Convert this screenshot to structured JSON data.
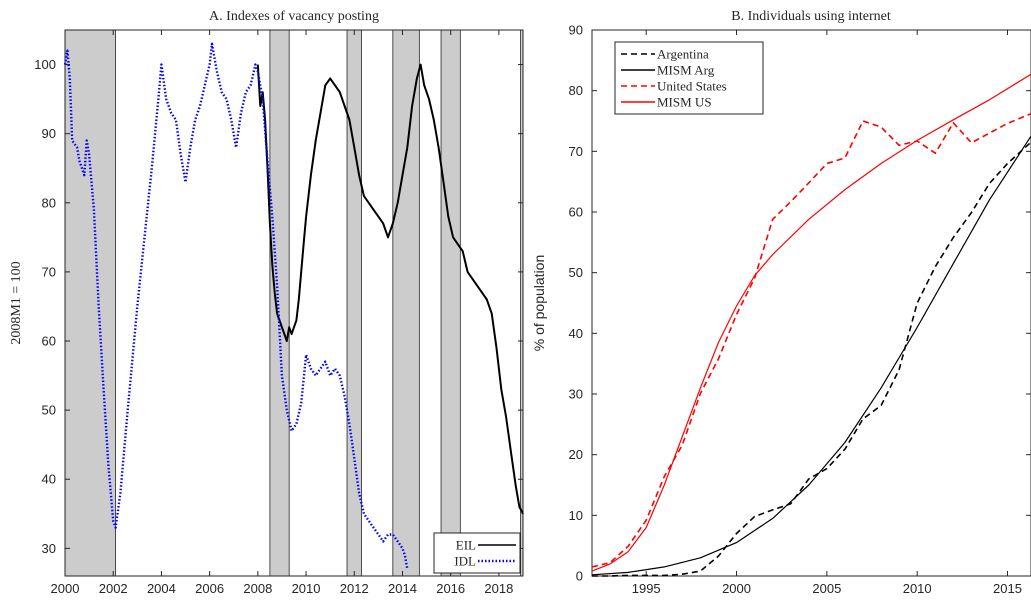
{
  "chart_data": [
    {
      "type": "line",
      "title": "A. Indexes of vacancy posting",
      "xlabel": "",
      "ylabel": "2008M1 = 100",
      "xlim": [
        2000,
        2019
      ],
      "ylim": [
        26,
        105
      ],
      "xticks": [
        2000,
        2002,
        2004,
        2006,
        2008,
        2010,
        2012,
        2014,
        2016,
        2018
      ],
      "yticks": [
        30,
        40,
        50,
        60,
        70,
        80,
        90,
        100
      ],
      "grid": false,
      "legend_position": "bottom-right",
      "recession_bands": [
        [
          2000.0,
          2002.1
        ],
        [
          2008.5,
          2009.3
        ],
        [
          2011.7,
          2012.3
        ],
        [
          2013.6,
          2014.7
        ],
        [
          2015.6,
          2016.4
        ],
        [
          2018.9,
          2019.0
        ]
      ],
      "series": [
        {
          "name": "EIL",
          "color": "#000000",
          "style": "solid",
          "points": [
            [
              2008.0,
              100
            ],
            [
              2008.1,
              94
            ],
            [
              2008.2,
              96
            ],
            [
              2008.3,
              92
            ],
            [
              2008.4,
              85
            ],
            [
              2008.5,
              77
            ],
            [
              2008.6,
              71
            ],
            [
              2008.7,
              67
            ],
            [
              2008.8,
              64
            ],
            [
              2008.9,
              63
            ],
            [
              2009.0,
              62
            ],
            [
              2009.1,
              61
            ],
            [
              2009.2,
              60
            ],
            [
              2009.3,
              62
            ],
            [
              2009.4,
              61
            ],
            [
              2009.5,
              62
            ],
            [
              2009.6,
              63
            ],
            [
              2009.7,
              66
            ],
            [
              2009.8,
              70
            ],
            [
              2009.9,
              74
            ],
            [
              2010.0,
              78
            ],
            [
              2010.2,
              84
            ],
            [
              2010.4,
              89
            ],
            [
              2010.6,
              93
            ],
            [
              2010.8,
              97
            ],
            [
              2011.0,
              98
            ],
            [
              2011.2,
              97
            ],
            [
              2011.4,
              96
            ],
            [
              2011.6,
              94
            ],
            [
              2011.8,
              92
            ],
            [
              2012.0,
              88
            ],
            [
              2012.2,
              84
            ],
            [
              2012.4,
              81
            ],
            [
              2012.6,
              80
            ],
            [
              2012.8,
              79
            ],
            [
              2013.0,
              78
            ],
            [
              2013.2,
              77
            ],
            [
              2013.4,
              75
            ],
            [
              2013.6,
              77
            ],
            [
              2013.8,
              80
            ],
            [
              2014.0,
              84
            ],
            [
              2014.2,
              88
            ],
            [
              2014.4,
              94
            ],
            [
              2014.6,
              98
            ],
            [
              2014.75,
              100
            ],
            [
              2014.9,
              97
            ],
            [
              2015.1,
              95
            ],
            [
              2015.3,
              92
            ],
            [
              2015.5,
              88
            ],
            [
              2015.7,
              83
            ],
            [
              2015.9,
              78
            ],
            [
              2016.1,
              75
            ],
            [
              2016.3,
              74
            ],
            [
              2016.5,
              73
            ],
            [
              2016.7,
              70
            ],
            [
              2016.9,
              69
            ],
            [
              2017.1,
              68
            ],
            [
              2017.3,
              67
            ],
            [
              2017.5,
              66
            ],
            [
              2017.7,
              64
            ],
            [
              2017.9,
              59
            ],
            [
              2018.1,
              53
            ],
            [
              2018.3,
              49
            ],
            [
              2018.5,
              44
            ],
            [
              2018.7,
              39
            ],
            [
              2018.85,
              36
            ],
            [
              2019.0,
              35
            ]
          ]
        },
        {
          "name": "IDL",
          "color": "#0000ff",
          "style": "dotted",
          "points": [
            [
              2000.0,
              100
            ],
            [
              2000.1,
              102
            ],
            [
              2000.2,
              98
            ],
            [
              2000.3,
              89
            ],
            [
              2000.5,
              88
            ],
            [
              2000.6,
              86
            ],
            [
              2000.8,
              84
            ],
            [
              2000.9,
              89
            ],
            [
              2001.0,
              87
            ],
            [
              2001.2,
              79
            ],
            [
              2001.4,
              65
            ],
            [
              2001.6,
              53
            ],
            [
              2001.8,
              42
            ],
            [
              2002.0,
              34
            ],
            [
              2002.1,
              33
            ],
            [
              2002.3,
              38
            ],
            [
              2002.6,
              50
            ],
            [
              2003.0,
              65
            ],
            [
              2003.3,
              75
            ],
            [
              2003.6,
              85
            ],
            [
              2003.9,
              96
            ],
            [
              2004.0,
              100
            ],
            [
              2004.2,
              95
            ],
            [
              2004.4,
              93
            ],
            [
              2004.6,
              92
            ],
            [
              2004.8,
              87
            ],
            [
              2005.0,
              83
            ],
            [
              2005.2,
              88
            ],
            [
              2005.4,
              92
            ],
            [
              2005.6,
              94
            ],
            [
              2005.8,
              97
            ],
            [
              2006.0,
              100
            ],
            [
              2006.1,
              103
            ],
            [
              2006.3,
              99
            ],
            [
              2006.5,
              96
            ],
            [
              2006.7,
              95
            ],
            [
              2006.9,
              92
            ],
            [
              2007.1,
              88
            ],
            [
              2007.3,
              93
            ],
            [
              2007.5,
              96
            ],
            [
              2007.7,
              97
            ],
            [
              2007.9,
              100
            ],
            [
              2008.0,
              99
            ],
            [
              2008.2,
              95
            ],
            [
              2008.4,
              86
            ],
            [
              2008.6,
              78
            ],
            [
              2008.8,
              68
            ],
            [
              2009.0,
              55
            ],
            [
              2009.2,
              50
            ],
            [
              2009.4,
              47
            ],
            [
              2009.6,
              48
            ],
            [
              2009.8,
              51
            ],
            [
              2010.0,
              58
            ],
            [
              2010.2,
              56
            ],
            [
              2010.4,
              55
            ],
            [
              2010.6,
              56
            ],
            [
              2010.8,
              57
            ],
            [
              2011.0,
              55
            ],
            [
              2011.2,
              56
            ],
            [
              2011.4,
              55
            ],
            [
              2011.6,
              52
            ],
            [
              2011.8,
              48
            ],
            [
              2012.0,
              43
            ],
            [
              2012.2,
              38
            ],
            [
              2012.4,
              35
            ],
            [
              2012.6,
              34
            ],
            [
              2012.8,
              33
            ],
            [
              2013.0,
              32
            ],
            [
              2013.2,
              31
            ],
            [
              2013.4,
              32
            ],
            [
              2013.6,
              32
            ],
            [
              2013.8,
              31
            ],
            [
              2014.0,
              30
            ],
            [
              2014.1,
              29
            ],
            [
              2014.2,
              27
            ]
          ]
        }
      ]
    },
    {
      "type": "line",
      "title": "B. Individuals using internet",
      "xlabel": "",
      "ylabel": "% of population",
      "xlim": [
        1992,
        2016.3
      ],
      "ylim": [
        0,
        90
      ],
      "xticks": [
        1995,
        2000,
        2005,
        2010,
        2015
      ],
      "yticks": [
        0,
        10,
        20,
        30,
        40,
        50,
        60,
        70,
        80,
        90
      ],
      "grid": false,
      "legend_position": "top-left",
      "series": [
        {
          "name": "Argentina",
          "color": "#000000",
          "style": "dashed",
          "points": [
            [
              1992,
              0
            ],
            [
              1993,
              0
            ],
            [
              1994,
              0.1
            ],
            [
              1995,
              0.1
            ],
            [
              1996,
              0.1
            ],
            [
              1997,
              0.3
            ],
            [
              1998,
              0.8
            ],
            [
              1999,
              3.3
            ],
            [
              2000,
              7.0
            ],
            [
              2001,
              9.8
            ],
            [
              2002,
              10.9
            ],
            [
              2003,
              11.9
            ],
            [
              2004,
              16.0
            ],
            [
              2005,
              17.7
            ],
            [
              2006,
              20.9
            ],
            [
              2007,
              25.9
            ],
            [
              2008,
              28.1
            ],
            [
              2009,
              34.0
            ],
            [
              2010,
              45.0
            ],
            [
              2011,
              51.0
            ],
            [
              2012,
              55.8
            ],
            [
              2013,
              59.9
            ],
            [
              2014,
              64.7
            ],
            [
              2015,
              68.0
            ],
            [
              2016.3,
              71.5
            ]
          ]
        },
        {
          "name": "MISM Arg",
          "color": "#000000",
          "style": "solid",
          "points": [
            [
              1992,
              0.2
            ],
            [
              1994,
              0.6
            ],
            [
              1996,
              1.5
            ],
            [
              1998,
              3.0
            ],
            [
              2000,
              5.5
            ],
            [
              2002,
              9.5
            ],
            [
              2004,
              15.0
            ],
            [
              2006,
              22.0
            ],
            [
              2008,
              31.0
            ],
            [
              2010,
              41.0
            ],
            [
              2012,
              51.5
            ],
            [
              2014,
              62.0
            ],
            [
              2016.3,
              72.5
            ]
          ]
        },
        {
          "name": "United States",
          "color": "#ff0000",
          "style": "dashed",
          "points": [
            [
              1992,
              1.5
            ],
            [
              1993,
              2.2
            ],
            [
              1994,
              4.9
            ],
            [
              1995,
              9.2
            ],
            [
              1996,
              16.4
            ],
            [
              1997,
              21.6
            ],
            [
              1998,
              30.1
            ],
            [
              1999,
              35.8
            ],
            [
              2000,
              43.1
            ],
            [
              2001,
              49.1
            ],
            [
              2002,
              58.8
            ],
            [
              2003,
              61.7
            ],
            [
              2004,
              64.8
            ],
            [
              2005,
              68.0
            ],
            [
              2006,
              68.9
            ],
            [
              2007,
              75.0
            ],
            [
              2008,
              74.0
            ],
            [
              2009,
              71.0
            ],
            [
              2010,
              71.7
            ],
            [
              2011,
              69.7
            ],
            [
              2012,
              74.7
            ],
            [
              2013,
              71.4
            ],
            [
              2014,
              73.0
            ],
            [
              2015,
              74.6
            ],
            [
              2016.3,
              76.2
            ]
          ]
        },
        {
          "name": "MISM US",
          "color": "#ff0000",
          "style": "solid",
          "points": [
            [
              1992,
              0.8
            ],
            [
              1993,
              2.0
            ],
            [
              1994,
              4.0
            ],
            [
              1995,
              8.0
            ],
            [
              1996,
              15.0
            ],
            [
              1997,
              23.0
            ],
            [
              1998,
              31.0
            ],
            [
              1999,
              38.5
            ],
            [
              2000,
              44.5
            ],
            [
              2001,
              49.5
            ],
            [
              2002,
              53.0
            ],
            [
              2004,
              58.8
            ],
            [
              2006,
              63.7
            ],
            [
              2008,
              68.0
            ],
            [
              2010,
              71.8
            ],
            [
              2012,
              75.2
            ],
            [
              2014,
              78.5
            ],
            [
              2016.3,
              82.7
            ]
          ]
        }
      ]
    }
  ]
}
